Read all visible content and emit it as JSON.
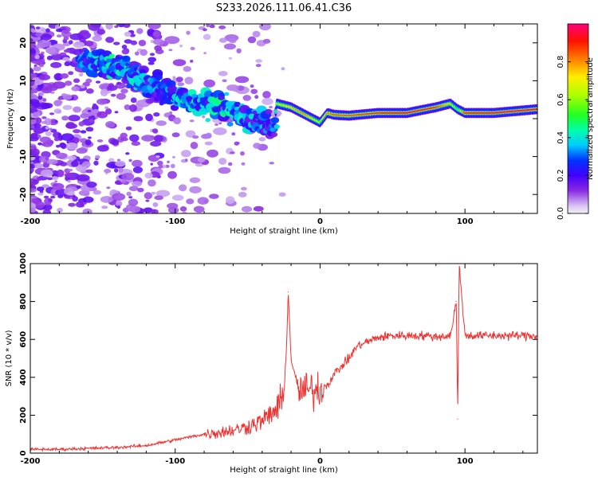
{
  "title": "S233.2026.111.06.41.C36",
  "chart_data": [
    {
      "type": "heatmap",
      "title": "S233.2026.111.06.41.C36",
      "xlabel": "Height of straight line (km)",
      "ylabel": "Frequency (Hz)",
      "xlim": [
        -200,
        150
      ],
      "ylim": [
        -25,
        25
      ],
      "x_ticks": [
        -200,
        -100,
        0,
        100
      ],
      "x_tick_labels": [
        "-200",
        "-100",
        "0",
        "100"
      ],
      "y_ticks": [
        -20,
        -10,
        0,
        10,
        20
      ],
      "y_tick_labels": [
        "-20",
        "-10",
        "0",
        "10",
        "20"
      ],
      "colorbar": {
        "label": "Normalized spectral amplitude",
        "range": [
          0.0,
          1.0
        ],
        "ticks": [
          0.0,
          0.2,
          0.4,
          0.6,
          0.8
        ],
        "tick_labels": [
          "0.0",
          "0.2",
          "0.4",
          "0.6",
          "0.8"
        ],
        "colormap": "hsv-rainbow"
      },
      "ridge": {
        "x": [
          -160,
          -140,
          -125,
          -110,
          -100,
          -90,
          -80,
          -70,
          -60,
          -50,
          -40,
          -32,
          -30,
          -20,
          -10,
          -5,
          0,
          5,
          10,
          20,
          40,
          60,
          80,
          90,
          95,
          100,
          120,
          150
        ],
        "frequency": [
          15,
          14,
          11,
          8,
          6,
          4.5,
          4,
          3,
          2,
          0.5,
          -1,
          -3,
          4,
          3,
          1,
          0,
          -1,
          1.5,
          1,
          0.8,
          1.5,
          1.5,
          3,
          4,
          2.5,
          1.5,
          1.5,
          2.5
        ],
        "amplitude": [
          0.3,
          0.35,
          0.3,
          0.25,
          0.3,
          0.35,
          0.3,
          0.35,
          0.35,
          0.3,
          0.3,
          0.25,
          0.6,
          0.75,
          0.8,
          0.7,
          0.6,
          0.8,
          0.85,
          0.85,
          0.9,
          0.95,
          0.9,
          0.7,
          0.5,
          0.9,
          0.95,
          0.95
        ]
      }
    },
    {
      "type": "line",
      "xlabel": "Height of straight line (km)",
      "ylabel": "SNR (10 * v/v)",
      "xlim": [
        -200,
        150
      ],
      "ylim": [
        0,
        1000
      ],
      "x_ticks": [
        -200,
        -100,
        0,
        100
      ],
      "x_tick_labels": [
        "-200",
        "-100",
        "0",
        "100"
      ],
      "y_ticks": [
        0,
        200,
        400,
        600,
        800,
        1000
      ],
      "y_tick_labels": [
        "0",
        "200",
        "400",
        "600",
        "800",
        "1000"
      ],
      "series": [
        {
          "name": "SNR",
          "color": "#ee3333",
          "x": [
            -200,
            -180,
            -160,
            -140,
            -120,
            -110,
            -100,
            -90,
            -80,
            -70,
            -60,
            -50,
            -40,
            -30,
            -25,
            -23,
            -22,
            -20,
            -15,
            -10,
            -5,
            0,
            5,
            10,
            20,
            25,
            30,
            40,
            50,
            60,
            70,
            80,
            90,
            94,
            95,
            96,
            100,
            110,
            120,
            130,
            140,
            150
          ],
          "y": [
            20,
            20,
            25,
            30,
            40,
            55,
            70,
            85,
            100,
            110,
            120,
            140,
            170,
            230,
            300,
            600,
            850,
            500,
            330,
            330,
            330,
            340,
            360,
            420,
            500,
            560,
            580,
            610,
            620,
            620,
            620,
            615,
            620,
            800,
            180,
            1000,
            620,
            620,
            620,
            620,
            620,
            620
          ]
        }
      ]
    }
  ]
}
